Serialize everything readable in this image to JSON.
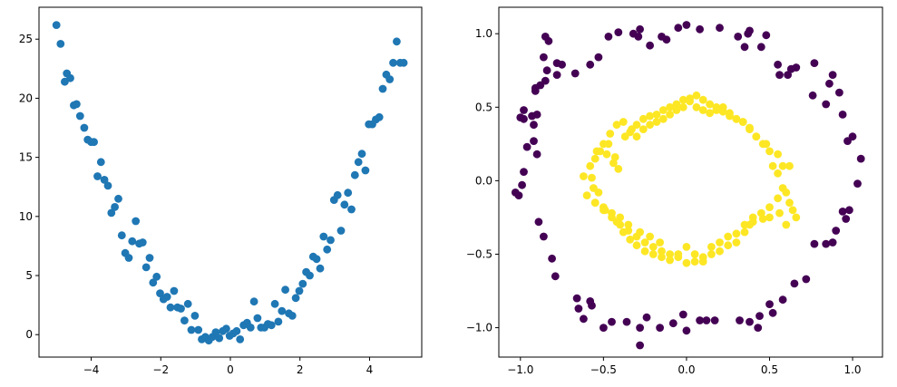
{
  "chart_data": [
    {
      "type": "scatter",
      "title": "",
      "xlabel": "",
      "ylabel": "",
      "xlim": [
        -5.5,
        5.5
      ],
      "ylim": [
        -1.9,
        27.7
      ],
      "xticks": [
        -4,
        -2,
        0,
        2,
        4
      ],
      "xtick_labels": [
        "−4",
        "−2",
        "0",
        "2",
        "4"
      ],
      "yticks": [
        0,
        5,
        10,
        15,
        20,
        25
      ],
      "ytick_labels": [
        "0",
        "5",
        "10",
        "15",
        "20",
        "25"
      ],
      "color": "#1f77b4",
      "grid": false,
      "series": [
        {
          "x": [
            -5.0,
            -4.88,
            -4.76,
            -4.7,
            -4.6,
            -4.5,
            -4.42,
            -4.32,
            -4.2,
            -4.1,
            -4.0,
            -3.92,
            -3.82,
            -3.72,
            -3.62,
            -3.52,
            -3.42,
            -3.32,
            -3.22,
            -3.12,
            -3.02,
            -2.92,
            -2.82,
            -2.72,
            -2.62,
            -2.52,
            -2.42,
            -2.32,
            -2.22,
            -2.12,
            -2.02,
            -1.92,
            -1.82,
            -1.72,
            -1.62,
            -1.52,
            -1.42,
            -1.32,
            -1.22,
            -1.12,
            -1.02,
            -0.92,
            -0.82,
            -0.72,
            -0.62,
            -0.52,
            -0.42,
            -0.32,
            -0.22,
            -0.12,
            -0.02,
            0.08,
            0.18,
            0.28,
            0.38,
            0.48,
            0.58,
            0.68,
            0.78,
            0.88,
            0.98,
            1.08,
            1.18,
            1.28,
            1.38,
            1.48,
            1.58,
            1.68,
            1.78,
            1.88,
            1.98,
            2.08,
            2.18,
            2.28,
            2.38,
            2.48,
            2.58,
            2.68,
            2.78,
            2.88,
            2.98,
            3.08,
            3.18,
            3.28,
            3.38,
            3.48,
            3.58,
            3.68,
            3.78,
            3.88,
            3.98,
            4.08,
            4.18,
            4.28,
            4.38,
            4.48,
            4.58,
            4.68,
            4.78,
            4.88,
            4.98
          ],
          "y": [
            26.2,
            24.6,
            21.4,
            22.1,
            21.7,
            19.4,
            19.5,
            18.5,
            17.5,
            16.5,
            16.3,
            16.3,
            13.4,
            14.6,
            13.1,
            12.6,
            10.3,
            10.8,
            11.5,
            8.4,
            6.9,
            6.5,
            7.9,
            9.6,
            7.7,
            7.8,
            5.7,
            6.5,
            4.4,
            4.9,
            3.5,
            3.0,
            3.2,
            2.3,
            3.7,
            2.3,
            2.2,
            1.2,
            2.6,
            0.4,
            1.6,
            0.4,
            -0.4,
            -0.2,
            -0.5,
            -0.2,
            0.2,
            -0.3,
            0.3,
            0.5,
            -0.1,
            0.1,
            0.3,
            -0.4,
            0.8,
            1.0,
            0.6,
            2.8,
            1.4,
            0.6,
            0.6,
            0.9,
            0.8,
            2.6,
            1.1,
            2.0,
            3.8,
            1.8,
            1.6,
            3.1,
            3.7,
            4.3,
            5.3,
            5.0,
            6.6,
            6.4,
            5.6,
            8.3,
            7.2,
            8.0,
            11.4,
            11.8,
            8.8,
            11.0,
            12.0,
            10.6,
            13.5,
            14.6,
            15.3,
            13.9,
            17.8,
            17.8,
            18.2,
            18.4,
            20.8,
            22.0,
            21.6,
            23.0,
            24.8,
            23.0,
            23.0
          ]
        }
      ]
    },
    {
      "type": "scatter",
      "title": "",
      "xlabel": "",
      "ylabel": "",
      "xlim": [
        -1.13,
        1.18
      ],
      "ylim": [
        -1.2,
        1.18
      ],
      "xticks": [
        -1.0,
        -0.5,
        0.0,
        0.5,
        1.0
      ],
      "xtick_labels": [
        "−1.0",
        "−0.5",
        "0.0",
        "0.5",
        "1.0"
      ],
      "yticks": [
        -1.0,
        -0.5,
        0.0,
        0.5,
        1.0
      ],
      "ytick_labels": [
        "−1.0",
        "−0.5",
        "0.0",
        "0.5",
        "1.0"
      ],
      "grid": false,
      "series": [
        {
          "class": 0,
          "color": "#440154",
          "x": [
            -1.03,
            -1.01,
            -0.99,
            -0.98,
            -0.96,
            -0.92,
            -0.9,
            -0.93,
            -0.91,
            -0.86,
            -0.83,
            -0.85,
            -0.84,
            -0.78,
            -0.85,
            -0.88,
            -0.91,
            -0.98,
            -1.0,
            -0.98,
            -0.92,
            -0.9,
            -0.89,
            -0.86,
            -0.81,
            -0.79,
            -0.66,
            -0.58,
            -0.65,
            -0.57,
            -0.62,
            -0.5,
            -0.45,
            -0.36,
            -0.28,
            -0.28,
            -0.24,
            -0.16,
            -0.08,
            -0.02,
            0.0,
            0.08,
            0.12,
            0.17,
            0.32,
            0.38,
            0.43,
            0.44,
            0.5,
            0.52,
            0.58,
            0.65,
            0.72,
            0.77,
            0.84,
            0.88,
            0.9,
            0.94,
            0.96,
            0.98,
            1.0,
            1.05,
            1.03,
            0.97,
            0.94,
            0.92,
            0.88,
            0.86,
            0.84,
            0.76,
            0.77,
            0.66,
            0.63,
            0.61,
            0.56,
            0.55,
            0.48,
            0.45,
            0.38,
            0.35,
            0.37,
            0.31,
            0.2,
            0.08,
            -0.0,
            -0.05,
            -0.15,
            -0.12,
            -0.22,
            -0.28,
            -0.29,
            -0.32,
            -0.41,
            -0.47,
            -0.53,
            -0.58,
            -0.67,
            -0.75,
            -0.78
          ],
          "y": [
            -0.08,
            -0.1,
            -0.03,
            0.06,
            0.23,
            0.38,
            0.45,
            0.44,
            0.63,
            0.84,
            0.95,
            0.98,
            0.75,
            0.72,
            0.68,
            0.65,
            0.61,
            0.48,
            0.43,
            0.42,
            0.27,
            0.18,
            -0.28,
            -0.38,
            -0.53,
            -0.65,
            -0.8,
            -0.82,
            -0.87,
            -0.85,
            -0.94,
            -1.0,
            -0.96,
            -0.96,
            -1.12,
            -1.0,
            -0.93,
            -1.0,
            -0.97,
            -0.91,
            -1.02,
            -0.95,
            -0.95,
            -0.95,
            -0.95,
            -0.96,
            -1.0,
            -0.92,
            -0.84,
            -0.9,
            -0.81,
            -0.7,
            -0.67,
            -0.43,
            -0.43,
            -0.42,
            -0.34,
            -0.21,
            -0.26,
            -0.2,
            0.3,
            0.15,
            -0.02,
            0.27,
            0.45,
            0.6,
            0.72,
            0.66,
            0.52,
            0.58,
            0.8,
            0.77,
            0.76,
            0.72,
            0.72,
            0.79,
            0.99,
            0.91,
            1.02,
            0.91,
            1.0,
            0.98,
            1.04,
            1.03,
            1.06,
            1.04,
            0.98,
            0.96,
            0.92,
            1.03,
            0.98,
            1.0,
            1.01,
            0.98,
            0.84,
            0.79,
            0.73,
            0.79,
            0.8
          ]
        },
        {
          "class": 1,
          "color": "#fde725",
          "x": [
            -0.62,
            -0.57,
            -0.55,
            -0.52,
            -0.47,
            -0.48,
            -0.44,
            -0.43,
            -0.41,
            -0.37,
            -0.33,
            -0.3,
            -0.26,
            -0.22,
            -0.18,
            -0.14,
            -0.1,
            -0.06,
            -0.02,
            0.02,
            0.06,
            0.1,
            0.14,
            0.18,
            0.22,
            0.26,
            0.3,
            0.34,
            0.38,
            0.42,
            0.46,
            0.5,
            0.52,
            0.55,
            0.58,
            0.6,
            0.62,
            0.64,
            0.66,
            0.6,
            0.56,
            0.5,
            0.46,
            0.4,
            0.38,
            0.35,
            0.3,
            0.25,
            0.2,
            0.15,
            0.1,
            0.05,
            0.0,
            -0.05,
            -0.1,
            -0.15,
            -0.2,
            -0.25,
            -0.3,
            -0.35,
            -0.4,
            -0.45,
            -0.5,
            -0.55,
            -0.56,
            -0.53,
            -0.49,
            -0.42,
            -0.38,
            -0.34,
            -0.3,
            -0.25,
            -0.2,
            -0.15,
            -0.1,
            -0.05,
            0.0,
            0.05,
            0.1,
            0.15,
            0.2,
            0.25,
            0.3,
            0.35,
            0.4,
            0.45,
            0.5,
            0.55,
            0.58,
            0.62,
            0.55,
            0.48,
            0.42,
            0.38,
            0.34,
            0.3,
            0.26,
            0.22,
            0.18,
            0.14,
            0.1,
            0.06,
            0.02,
            -0.02,
            -0.06,
            -0.1,
            -0.14,
            -0.18,
            -0.22,
            -0.26,
            -0.3,
            -0.34,
            -0.38,
            -0.42,
            -0.46,
            -0.5,
            -0.54,
            -0.58,
            -0.6,
            -0.55,
            -0.5,
            -0.45,
            -0.4,
            -0.35,
            -0.28,
            -0.22,
            -0.16
          ],
          "y": [
            0.03,
            0.02,
            0.15,
            0.2,
            0.25,
            0.18,
            0.12,
            0.16,
            0.08,
            0.3,
            0.35,
            0.38,
            0.42,
            0.44,
            0.45,
            0.48,
            0.5,
            0.52,
            0.55,
            0.56,
            0.5,
            0.48,
            0.46,
            0.48,
            0.5,
            0.46,
            0.42,
            0.4,
            0.36,
            0.3,
            0.25,
            0.2,
            0.1,
            0.05,
            -0.05,
            -0.08,
            -0.15,
            -0.2,
            -0.25,
            -0.3,
            -0.22,
            -0.25,
            -0.26,
            -0.28,
            -0.3,
            -0.35,
            -0.42,
            -0.44,
            -0.48,
            -0.5,
            -0.52,
            -0.55,
            -0.56,
            -0.52,
            -0.5,
            -0.48,
            -0.45,
            -0.42,
            -0.38,
            -0.34,
            -0.3,
            -0.25,
            -0.2,
            -0.15,
            -0.05,
            -0.08,
            -0.2,
            -0.28,
            -0.35,
            -0.4,
            -0.44,
            -0.48,
            -0.5,
            -0.52,
            -0.54,
            -0.5,
            -0.45,
            -0.5,
            -0.55,
            -0.45,
            -0.42,
            -0.38,
            -0.36,
            -0.3,
            -0.25,
            -0.22,
            -0.18,
            -0.12,
            0.1,
            0.1,
            0.18,
            0.25,
            0.3,
            0.35,
            0.4,
            0.42,
            0.44,
            0.47,
            0.5,
            0.52,
            0.55,
            0.58,
            0.54,
            0.5,
            0.48,
            0.45,
            0.42,
            0.4,
            0.38,
            0.35,
            0.3,
            0.33,
            0.4,
            0.38,
            0.32,
            0.25,
            0.2,
            0.1,
            -0.1,
            -0.15,
            -0.18,
            -0.22,
            -0.25,
            -0.3,
            -0.35,
            -0.38,
            -0.42
          ]
        }
      ]
    }
  ]
}
